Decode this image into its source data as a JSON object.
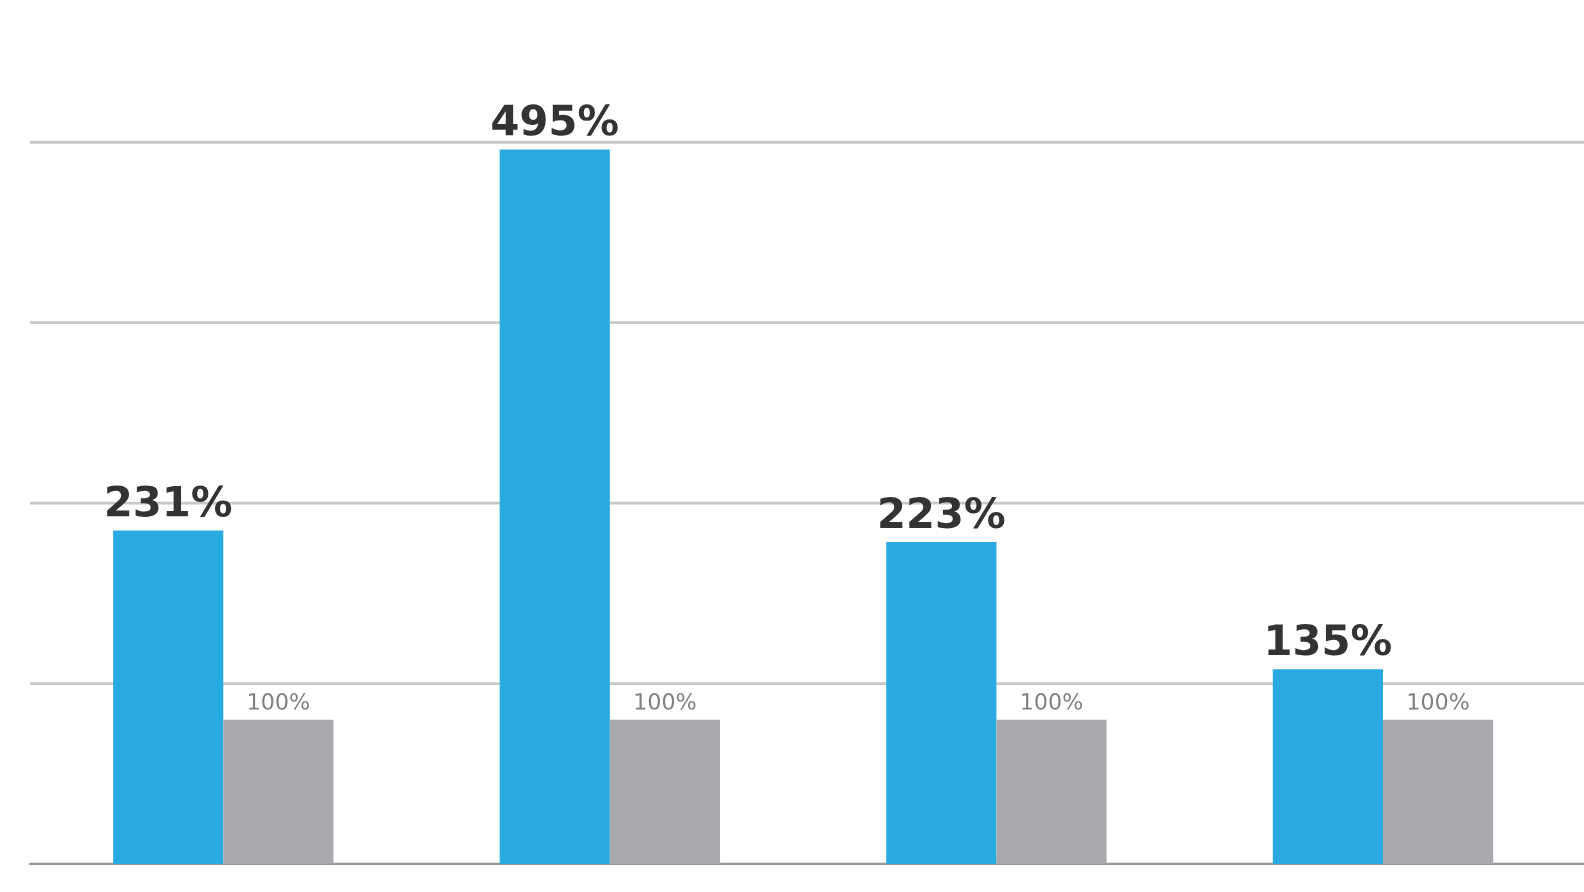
{
  "chart_data": {
    "type": "bar",
    "categories": [
      null,
      null,
      null,
      null
    ],
    "series": [
      {
        "color": "#29abe2",
        "values": [
          231,
          495,
          223,
          135
        ],
        "value_labels": [
          "231%",
          "495%",
          "223%",
          "135%"
        ]
      },
      {
        "color": "#a7a9ac",
        "values": [
          100,
          100,
          100,
          100
        ],
        "value_labels": [
          "100%",
          "100%",
          "100%",
          "100%"
        ]
      }
    ],
    "yticks": [
      {
        "value": 0,
        "label": null
      },
      {
        "value": 125,
        "label": null
      },
      {
        "value": 250,
        "label": null
      },
      {
        "value": 375,
        "label": null
      },
      {
        "value": 500,
        "label": null
      }
    ],
    "grid": "y"
  }
}
